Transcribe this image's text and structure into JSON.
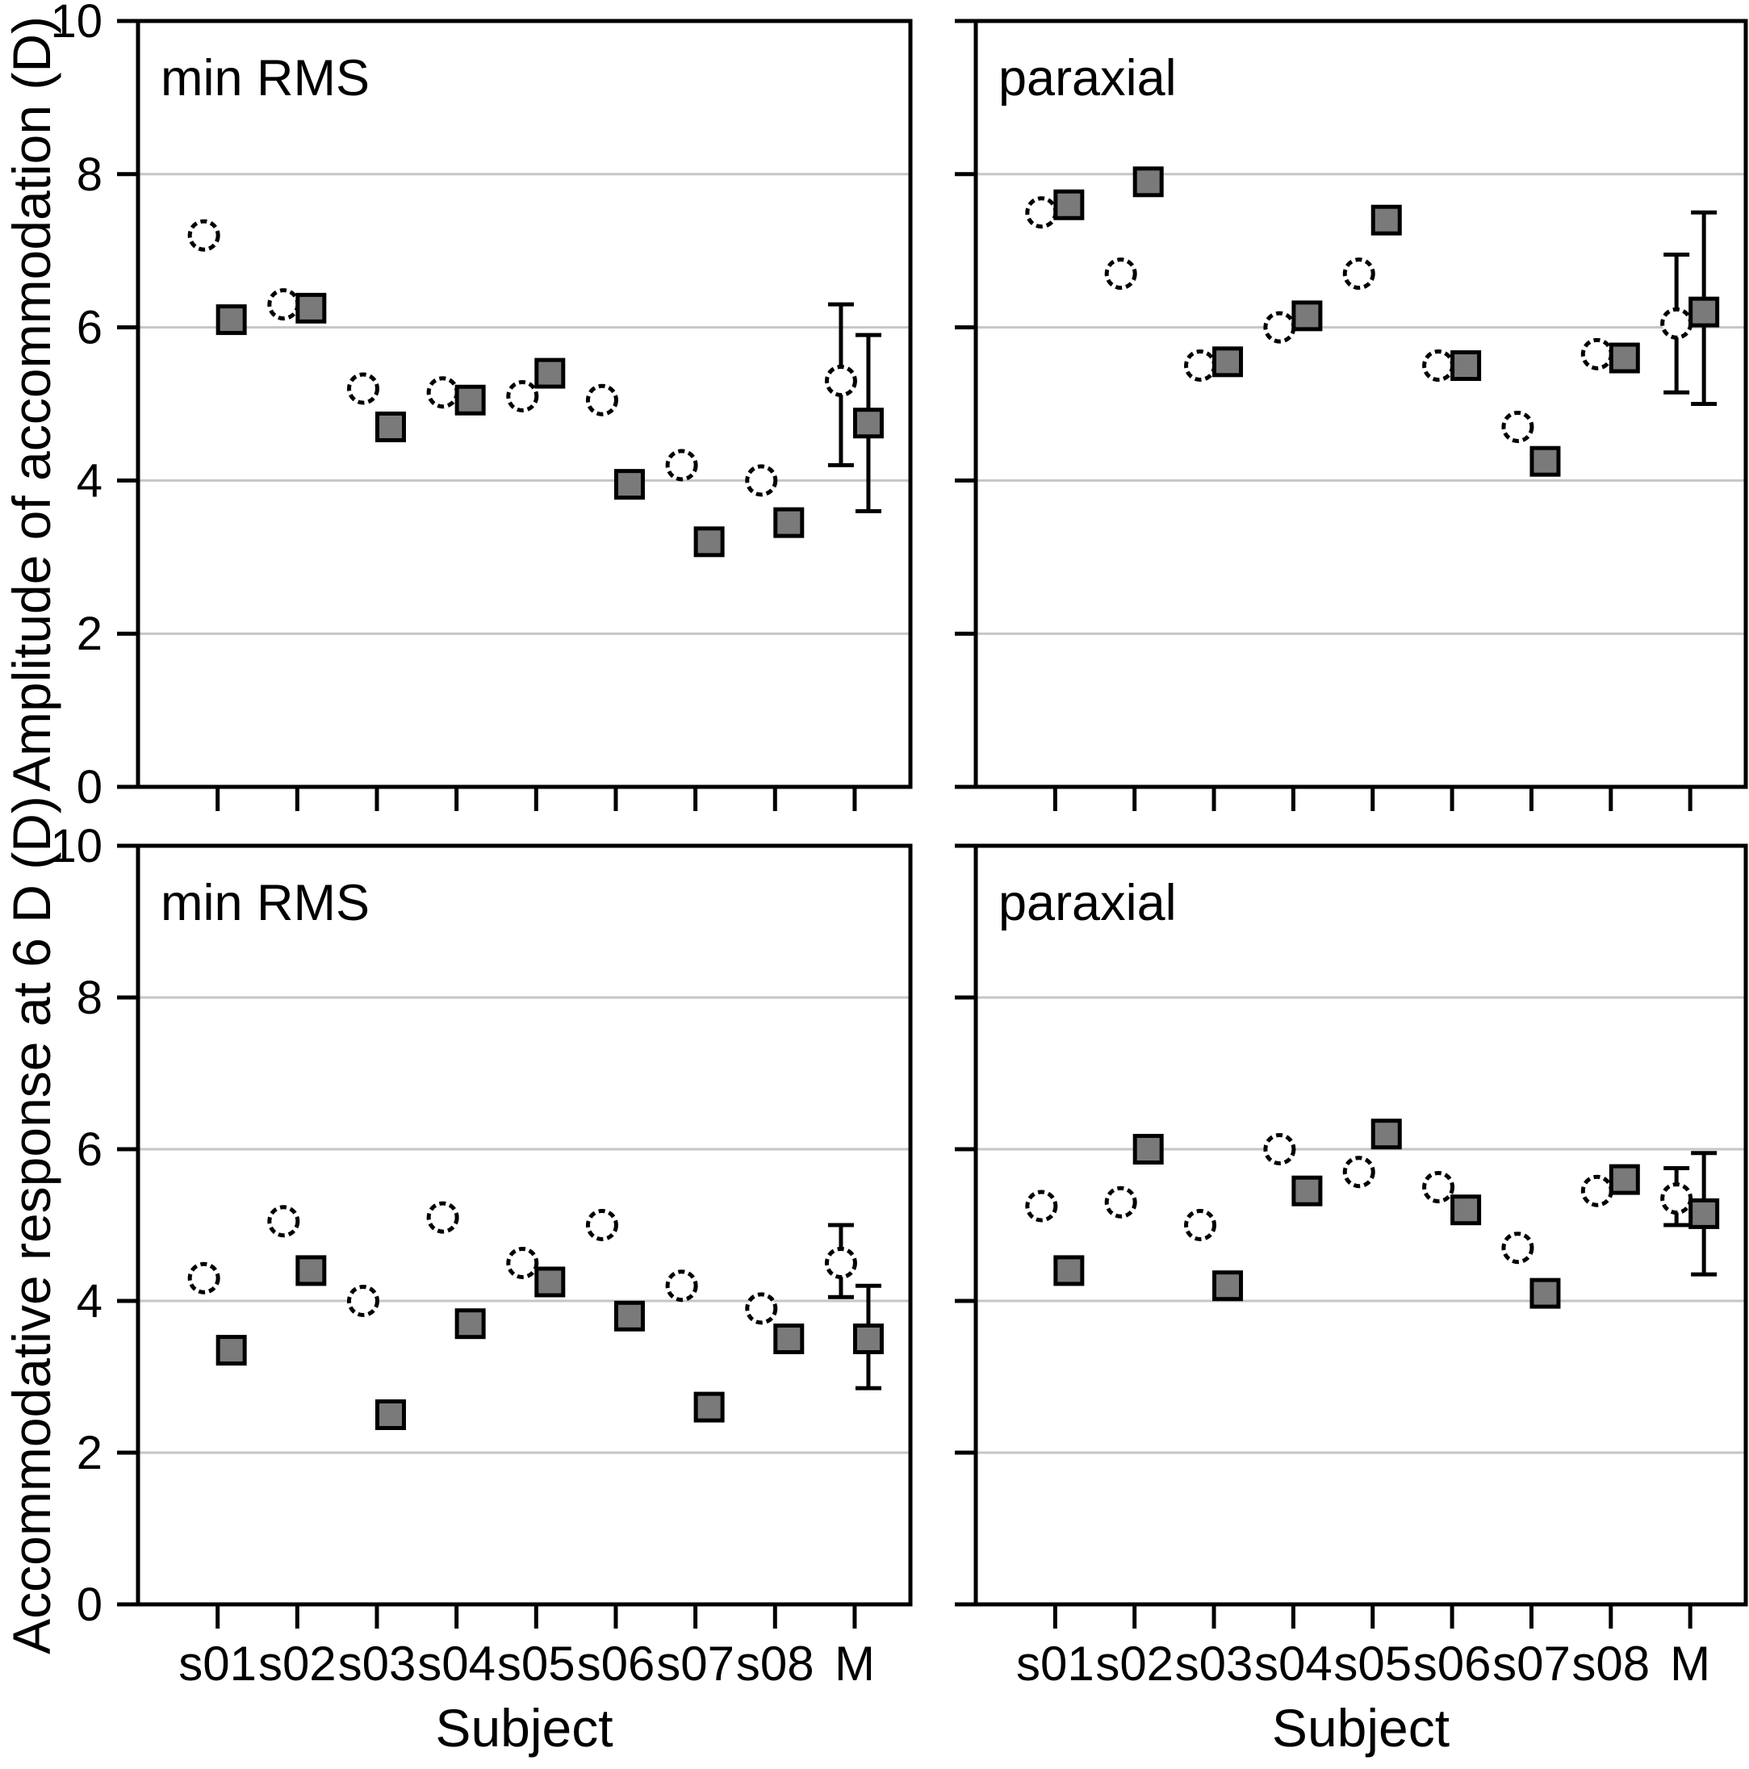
{
  "figure": {
    "background": "#ffffff",
    "y_axis_titles": [
      "Amplitude of accommodation (D)",
      "Accommodative response at 6 D (D)"
    ],
    "x_axis_title": "Subject",
    "y_tick_labels": [
      "0",
      "2",
      "4",
      "6",
      "8",
      "10"
    ],
    "x_tick_labels": [
      "s01",
      "s02",
      "s03",
      "s04",
      "s05",
      "s06",
      "s07",
      "s08",
      "M"
    ]
  },
  "colors": {
    "background": "#ffffff",
    "frame": "#000000",
    "gridline": "#c6c6c6",
    "tick": "#000000",
    "circle_fill": "#ffffff",
    "circle_stroke": "#000000",
    "square_fill": "#7a7a7a",
    "square_stroke": "#000000",
    "error_bar": "#000000",
    "text": "#000000"
  },
  "chart_data": [
    {
      "id": "amplitude-min-rms",
      "type": "scatter",
      "row": 0,
      "col": 0,
      "annotation": "min RMS",
      "ylabel": "Amplitude of accommodation (D)",
      "xlabel": "",
      "ylim": [
        0,
        10
      ],
      "yticks": [
        0,
        2,
        4,
        6,
        8,
        10
      ],
      "grid": true,
      "legend_position": "none",
      "categories": [
        "s01",
        "s02",
        "s03",
        "s04",
        "s05",
        "s06",
        "s07",
        "s08",
        "M"
      ],
      "series": [
        {
          "name": "open-circle",
          "marker": "open-circle",
          "values": [
            7.2,
            6.3,
            5.2,
            5.15,
            5.1,
            5.05,
            4.2,
            4.0,
            5.3
          ],
          "m_error": {
            "low": 4.2,
            "high": 6.3
          }
        },
        {
          "name": "filled-square",
          "marker": "filled-square",
          "values": [
            6.1,
            6.25,
            4.7,
            5.05,
            5.4,
            3.95,
            3.2,
            3.45,
            4.75
          ],
          "m_error": {
            "low": 3.6,
            "high": 5.9
          }
        }
      ]
    },
    {
      "id": "amplitude-paraxial",
      "type": "scatter",
      "row": 0,
      "col": 1,
      "annotation": "paraxial",
      "ylabel": "Amplitude of accommodation (D)",
      "xlabel": "",
      "ylim": [
        0,
        10
      ],
      "yticks": [
        0,
        2,
        4,
        6,
        8,
        10
      ],
      "grid": true,
      "legend_position": "none",
      "categories": [
        "s01",
        "s02",
        "s03",
        "s04",
        "s05",
        "s06",
        "s07",
        "s08",
        "M"
      ],
      "series": [
        {
          "name": "open-circle",
          "marker": "open-circle",
          "values": [
            7.5,
            6.7,
            5.5,
            6.0,
            6.7,
            5.5,
            4.7,
            5.65,
            6.05
          ],
          "m_error": {
            "low": 5.15,
            "high": 6.95
          }
        },
        {
          "name": "filled-square",
          "marker": "filled-square",
          "values": [
            7.6,
            7.9,
            5.55,
            6.15,
            7.4,
            5.5,
            4.25,
            5.6,
            6.2
          ],
          "m_error": {
            "low": 5.0,
            "high": 7.5
          }
        }
      ]
    },
    {
      "id": "response6d-min-rms",
      "type": "scatter",
      "row": 1,
      "col": 0,
      "annotation": "min RMS",
      "ylabel": "Accommodative response at 6 D (D)",
      "xlabel": "Subject",
      "ylim": [
        0,
        10
      ],
      "yticks": [
        0,
        2,
        4,
        6,
        8,
        10
      ],
      "grid": true,
      "legend_position": "none",
      "categories": [
        "s01",
        "s02",
        "s03",
        "s04",
        "s05",
        "s06",
        "s07",
        "s08",
        "M"
      ],
      "series": [
        {
          "name": "open-circle",
          "marker": "open-circle",
          "values": [
            4.3,
            5.05,
            4.0,
            5.1,
            4.5,
            5.0,
            4.2,
            3.9,
            4.5
          ],
          "m_error": {
            "low": 4.05,
            "high": 5.0
          }
        },
        {
          "name": "filled-square",
          "marker": "filled-square",
          "values": [
            3.35,
            4.4,
            2.5,
            3.7,
            4.25,
            3.8,
            2.6,
            3.5,
            3.5
          ],
          "m_error": {
            "low": 2.85,
            "high": 4.2
          }
        }
      ]
    },
    {
      "id": "response6d-paraxial",
      "type": "scatter",
      "row": 1,
      "col": 1,
      "annotation": "paraxial",
      "ylabel": "Accommodative response at 6 D (D)",
      "xlabel": "Subject",
      "ylim": [
        0,
        10
      ],
      "yticks": [
        0,
        2,
        4,
        6,
        8,
        10
      ],
      "grid": true,
      "legend_position": "none",
      "categories": [
        "s01",
        "s02",
        "s03",
        "s04",
        "s05",
        "s06",
        "s07",
        "s08",
        "M"
      ],
      "series": [
        {
          "name": "open-circle",
          "marker": "open-circle",
          "values": [
            5.25,
            5.3,
            5.0,
            6.0,
            5.7,
            5.5,
            4.7,
            5.45,
            5.35
          ],
          "m_error": {
            "low": 5.0,
            "high": 5.75
          }
        },
        {
          "name": "filled-square",
          "marker": "filled-square",
          "values": [
            4.4,
            6.0,
            4.2,
            5.45,
            6.2,
            5.2,
            4.1,
            5.6,
            5.15
          ],
          "m_error": {
            "low": 4.35,
            "high": 5.95
          }
        }
      ]
    }
  ]
}
